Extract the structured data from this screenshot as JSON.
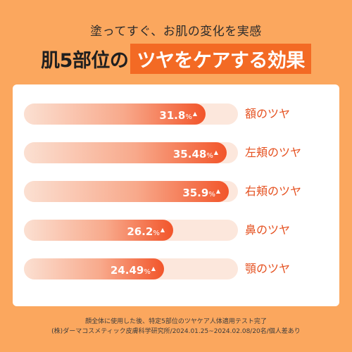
{
  "header": {
    "subtitle": "塗ってすぐ、お肌の変化を実感",
    "title_plain": "肌5部位の",
    "title_highlight": "ツヤをケアする効果"
  },
  "chart_data": {
    "type": "bar",
    "orientation": "horizontal",
    "categories": [
      "額のツヤ",
      "左頬のツヤ",
      "右頬のツヤ",
      "鼻のツヤ",
      "顎のツヤ"
    ],
    "values": [
      31.8,
      35.48,
      35.9,
      26.2,
      24.49
    ],
    "value_labels": [
      "31.8",
      "35.48",
      "35.9",
      "26.2",
      "24.49"
    ],
    "unit": "%",
    "marker": "▲",
    "colors": {
      "bar_end": "#F2552A",
      "bar_start": "#FBE0D2",
      "label": "#E5501F",
      "background": "#FBA75E",
      "highlight": "#F36A24"
    }
  },
  "footer": {
    "line1": "顔全体に使用した後、特定5部位のツヤケア人体適用テスト完了",
    "line2": "(株)ダーマコスメティック皮膚科学研究所/2024.01.25~2024.02.08/20名/個人差あり"
  }
}
